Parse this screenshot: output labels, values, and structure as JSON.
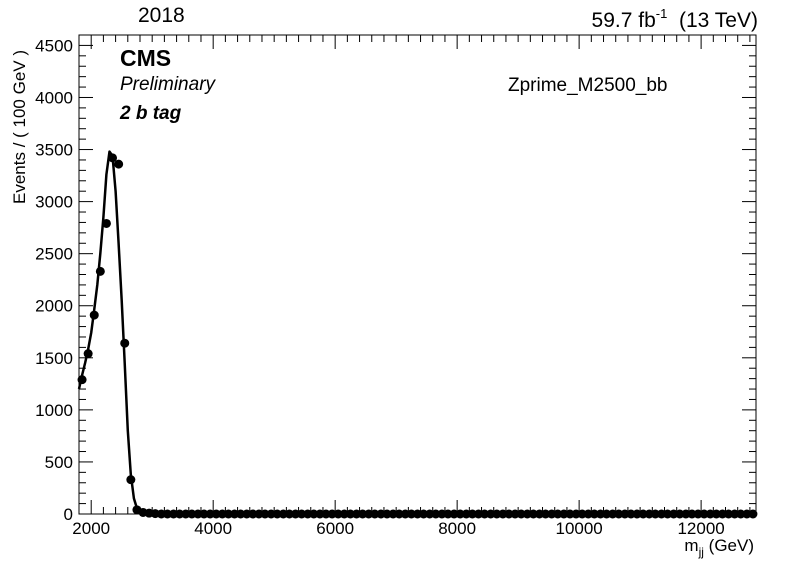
{
  "header": {
    "year": "2018",
    "lumi_value": "59.7 fb",
    "lumi_exp": "-1",
    "energy": "(13 TeV)"
  },
  "labels": {
    "experiment": "CMS",
    "status": "Preliminary",
    "category": "2 b tag",
    "sample": "Zprime_M2500_bb"
  },
  "chart_data": {
    "type": "scatter",
    "title": "",
    "ylabel": "Events / ( 100 GeV )",
    "xlabel_main": "m",
    "xlabel_sub": "jj",
    "xlabel_unit": "(GeV)",
    "xlim": [
      1800,
      12900
    ],
    "ylim": [
      0,
      4600
    ],
    "x_ticks": [
      2000,
      4000,
      6000,
      8000,
      10000,
      12000
    ],
    "y_ticks": [
      0,
      500,
      1000,
      1500,
      2000,
      2500,
      3000,
      3500,
      4000,
      4500
    ],
    "color": "#000000",
    "series": [
      {
        "kind": "points",
        "x": [
          1850,
          1950,
          2050,
          2150,
          2250,
          2350,
          2450,
          2550,
          2650,
          2750,
          2850,
          2950,
          3050
        ],
        "y": [
          1290,
          1540,
          1910,
          2330,
          2790,
          3420,
          3360,
          1640,
          330,
          40,
          15,
          8,
          4
        ]
      },
      {
        "kind": "curve",
        "x": [
          1800,
          1850,
          1900,
          1950,
          2000,
          2050,
          2100,
          2150,
          2200,
          2250,
          2300,
          2350,
          2400,
          2450,
          2500,
          2550,
          2600,
          2650,
          2700,
          2750,
          2800,
          2850,
          2900,
          3000,
          3200,
          4000,
          6000,
          9000,
          12900
        ],
        "y": [
          1200,
          1330,
          1450,
          1580,
          1740,
          1960,
          2200,
          2500,
          2850,
          3260,
          3480,
          3440,
          3100,
          2600,
          2050,
          1450,
          800,
          380,
          150,
          55,
          18,
          6,
          2,
          0,
          0,
          0,
          0,
          0,
          0
        ]
      }
    ]
  }
}
